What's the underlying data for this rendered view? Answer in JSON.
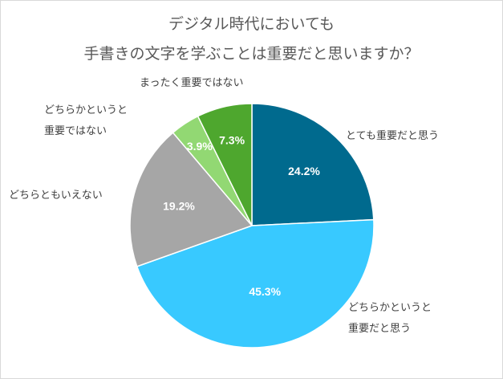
{
  "chart_data": {
    "type": "pie",
    "title": [
      "デジタル時代においても",
      "手書きの文字を学ぶことは重要だと思いますか？"
    ],
    "series": [
      {
        "category": "とても重要だと思う",
        "value": 24.2,
        "value_label": "24.2%",
        "color": "#006A8E"
      },
      {
        "category": "どちらかというと重要だと思う",
        "category_lines": [
          "どちらかというと",
          "重要だと思う"
        ],
        "value": 45.3,
        "value_label": "45.3%",
        "color": "#38C9FF"
      },
      {
        "category": "どちらともいえない",
        "value": 19.2,
        "value_label": "19.2%",
        "color": "#A6A6A6"
      },
      {
        "category": "どちらかというと重要ではない",
        "category_lines": [
          "どちらかというと",
          "重要ではない"
        ],
        "value": 3.9,
        "value_label": "3.9%",
        "color": "#92D873"
      },
      {
        "category": "まったく重要ではない",
        "value": 7.3,
        "value_label": "7.3%",
        "color": "#4EA72E"
      }
    ],
    "start_angle": "12 o'clock",
    "direction": "clockwise",
    "legend": "none (data labels used)"
  }
}
